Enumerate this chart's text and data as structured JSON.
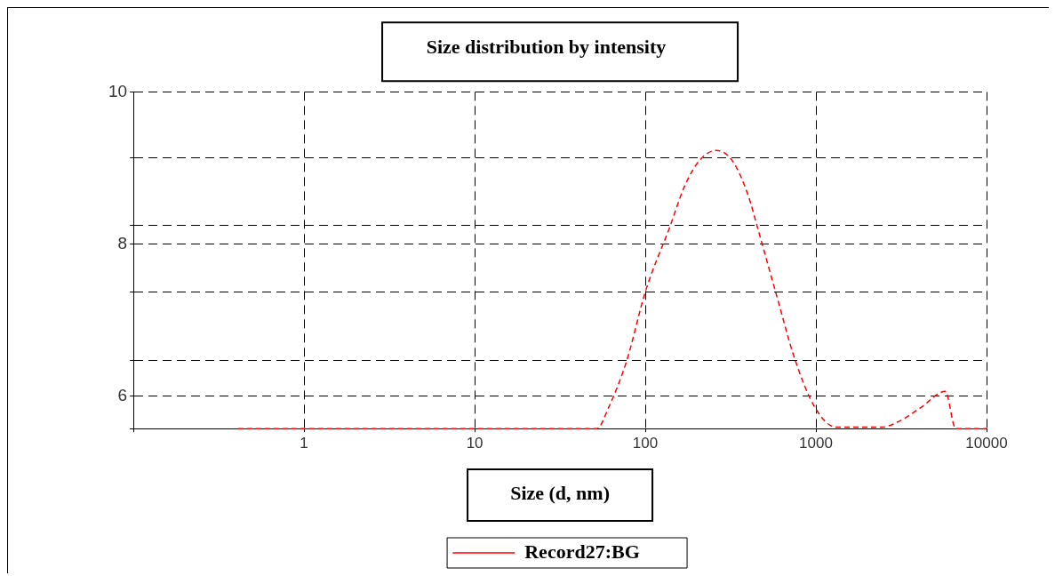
{
  "chart_data": {
    "type": "line",
    "title": "Size distribution by intensity",
    "xlabel": "Size (d, nm)",
    "log": "x",
    "xlim": [
      0.1,
      10000
    ],
    "xticks": [
      {
        "value": 0.1,
        "label": null
      },
      1,
      10,
      100,
      1000,
      10000
    ],
    "ylim": [
      5.57,
      10
    ],
    "yticks": [
      {
        "value": 5.57,
        "label": null
      },
      6,
      {
        "value": 6.47,
        "label": null
      },
      {
        "value": 7.37,
        "label": null
      },
      8,
      {
        "value": 8.24,
        "label": null
      },
      {
        "value": 9.13,
        "label": null
      },
      10
    ],
    "grid": true,
    "legend": "bottom",
    "line_style": "dashed",
    "marker": "none",
    "series": [
      {
        "name": "Record27:BG",
        "color": "#ff0000",
        "x": [
          0.41,
          1,
          10,
          49,
          52,
          61,
          78,
          100,
          139,
          170,
          208,
          261,
          327,
          402,
          454,
          580,
          756,
          986,
          1313,
          2428,
          3100,
          4130,
          5730,
          6600,
          10000
        ],
        "values": [
          5.57,
          5.57,
          5.57,
          5.57,
          5.57,
          5.85,
          6.47,
          7.37,
          8.22,
          8.76,
          9.1,
          9.23,
          9.08,
          8.63,
          8.22,
          7.37,
          6.47,
          5.85,
          5.59,
          5.59,
          5.67,
          5.85,
          6.06,
          5.57,
          5.57
        ]
      }
    ]
  }
}
